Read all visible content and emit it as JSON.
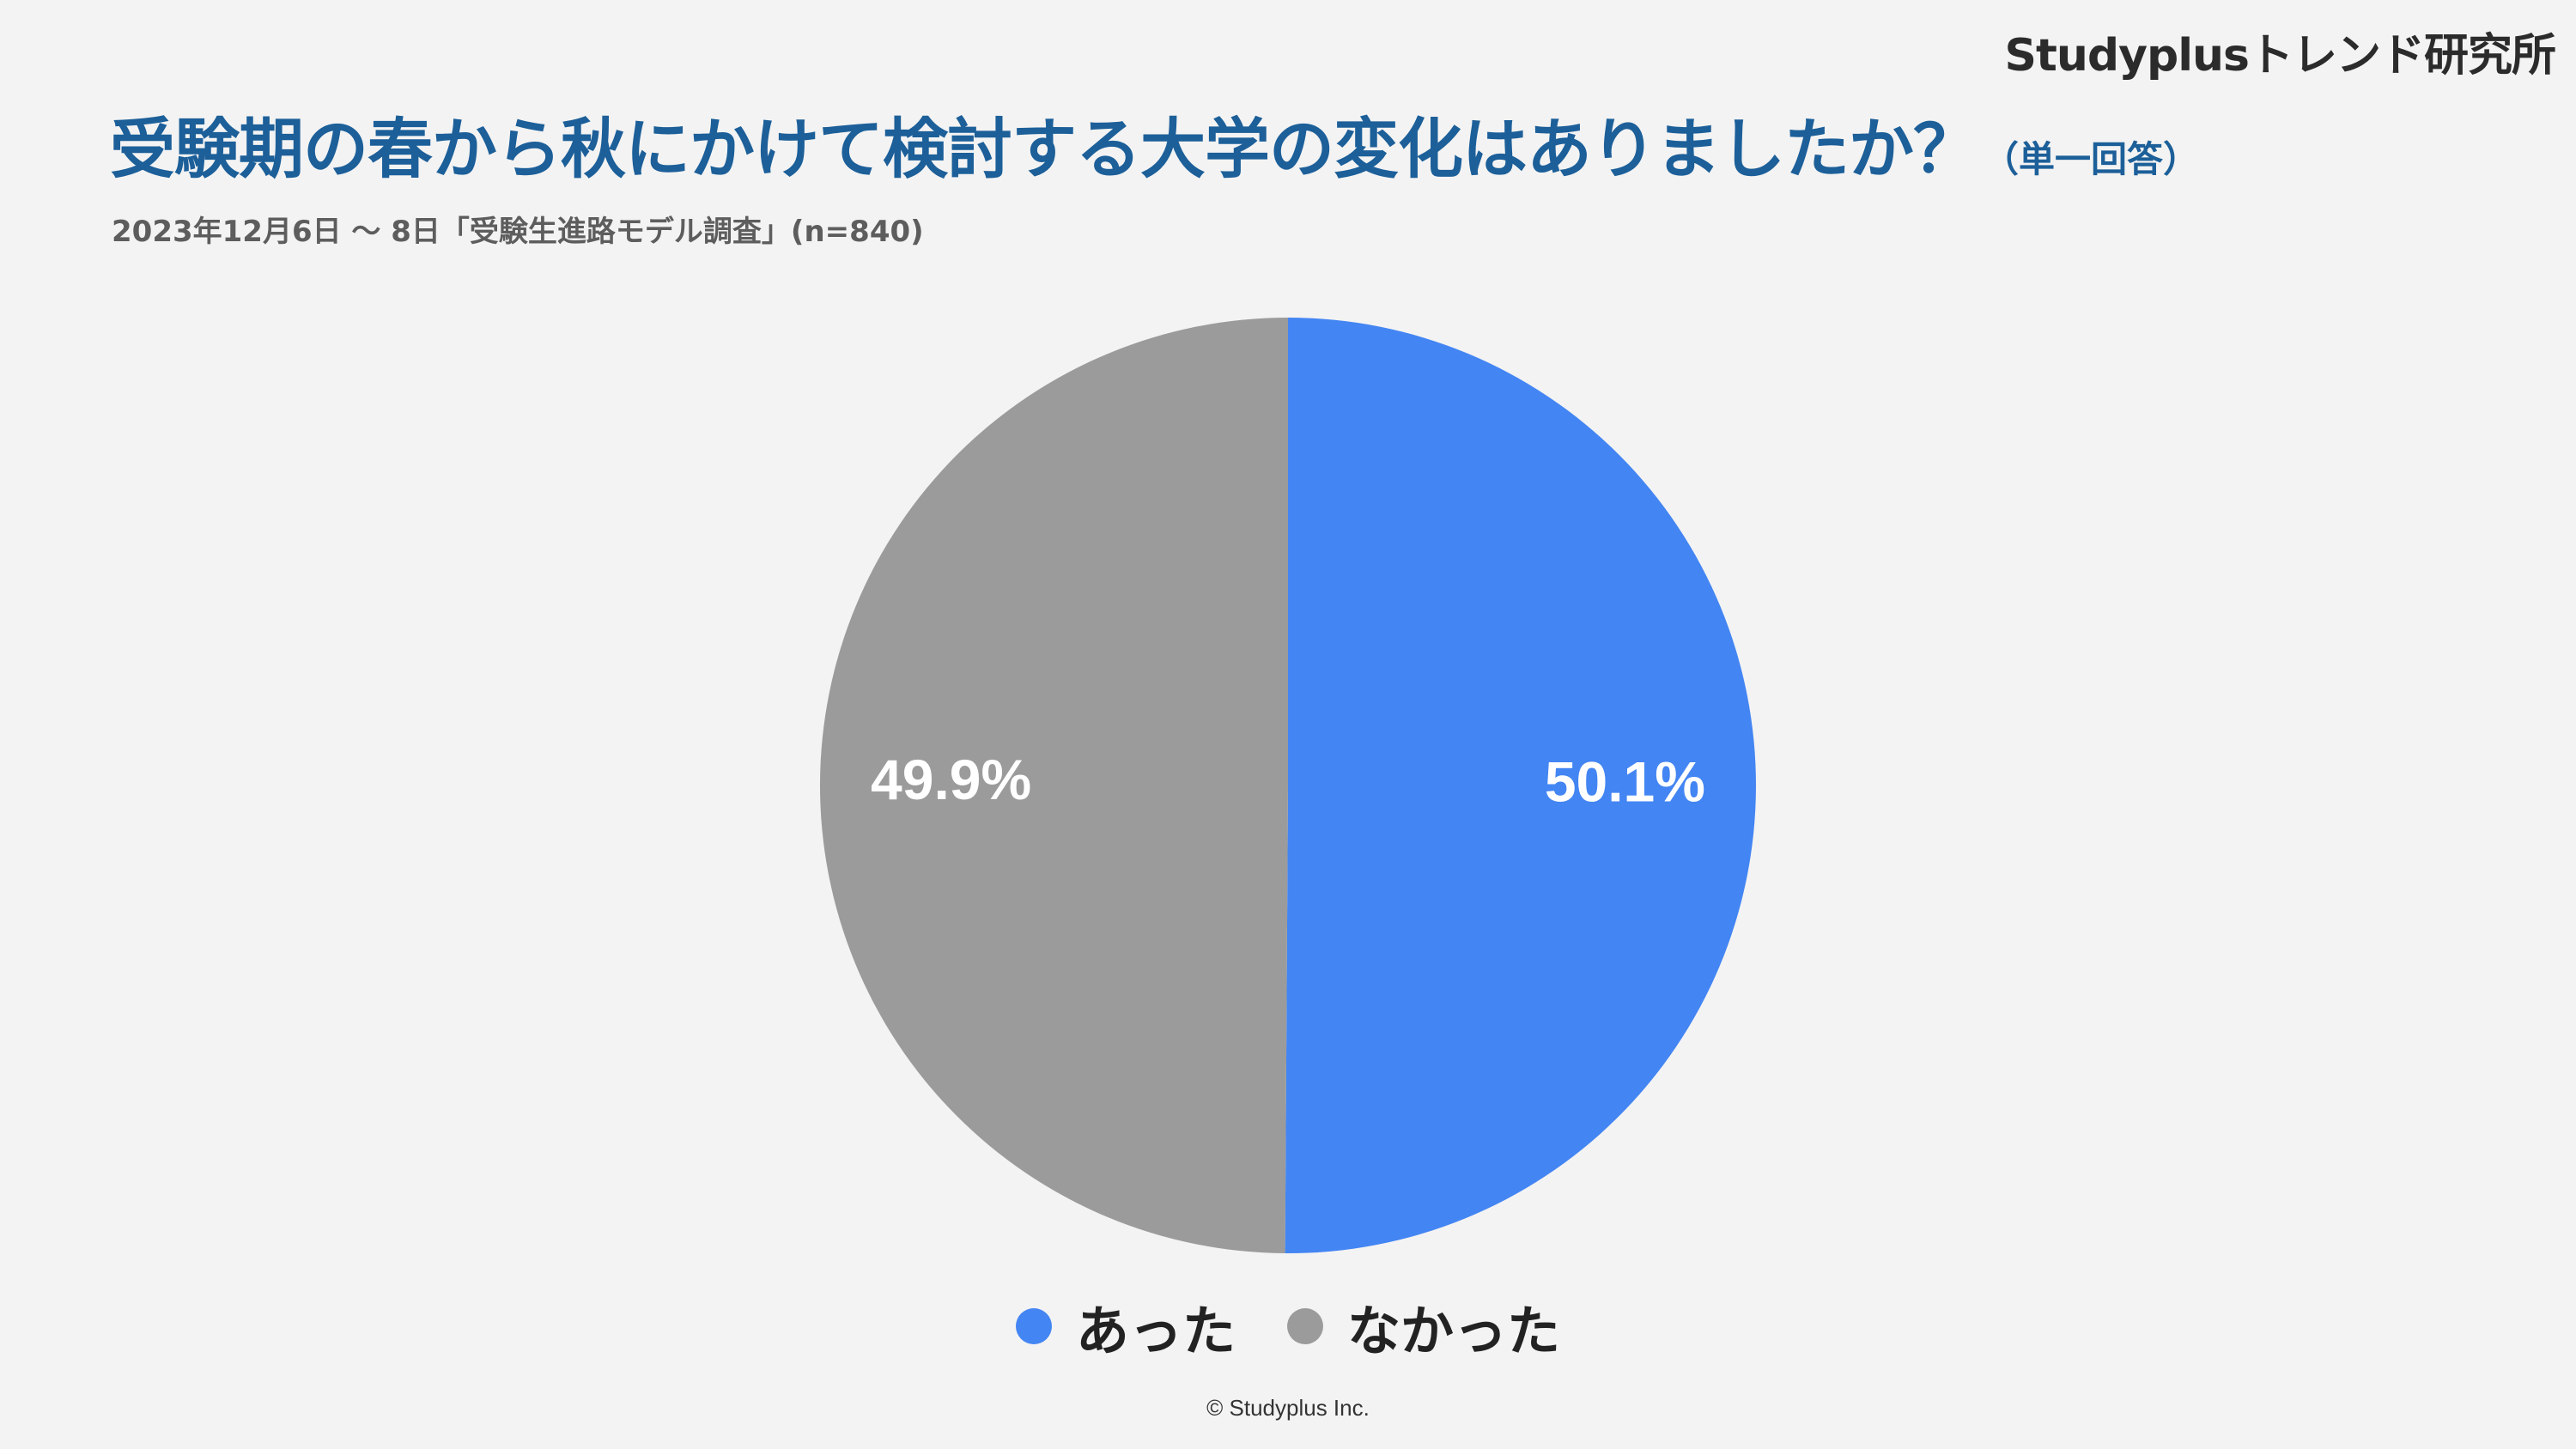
{
  "brand": "Studyplusトレンド研究所",
  "title": "受験期の春から秋にかけて検討する大学の変化はありましたか？",
  "title_note": "（単一回答）",
  "subtitle": "2023年12月6日 〜 8日「受験生進路モデル調査」(n=840)",
  "footer": "© Studyplus Inc.",
  "chart_data": {
    "type": "pie",
    "title": "受験期の春から秋にかけて検討する大学の変化はありましたか？",
    "slices": [
      {
        "label": "あった",
        "value": 50.1,
        "display": "50.1%",
        "color": "#4385f3"
      },
      {
        "label": "なかった",
        "value": 49.9,
        "display": "49.9%",
        "color": "#9b9b9b"
      }
    ],
    "start_angle": "12 o'clock, clockwise",
    "legend_position": "bottom"
  }
}
